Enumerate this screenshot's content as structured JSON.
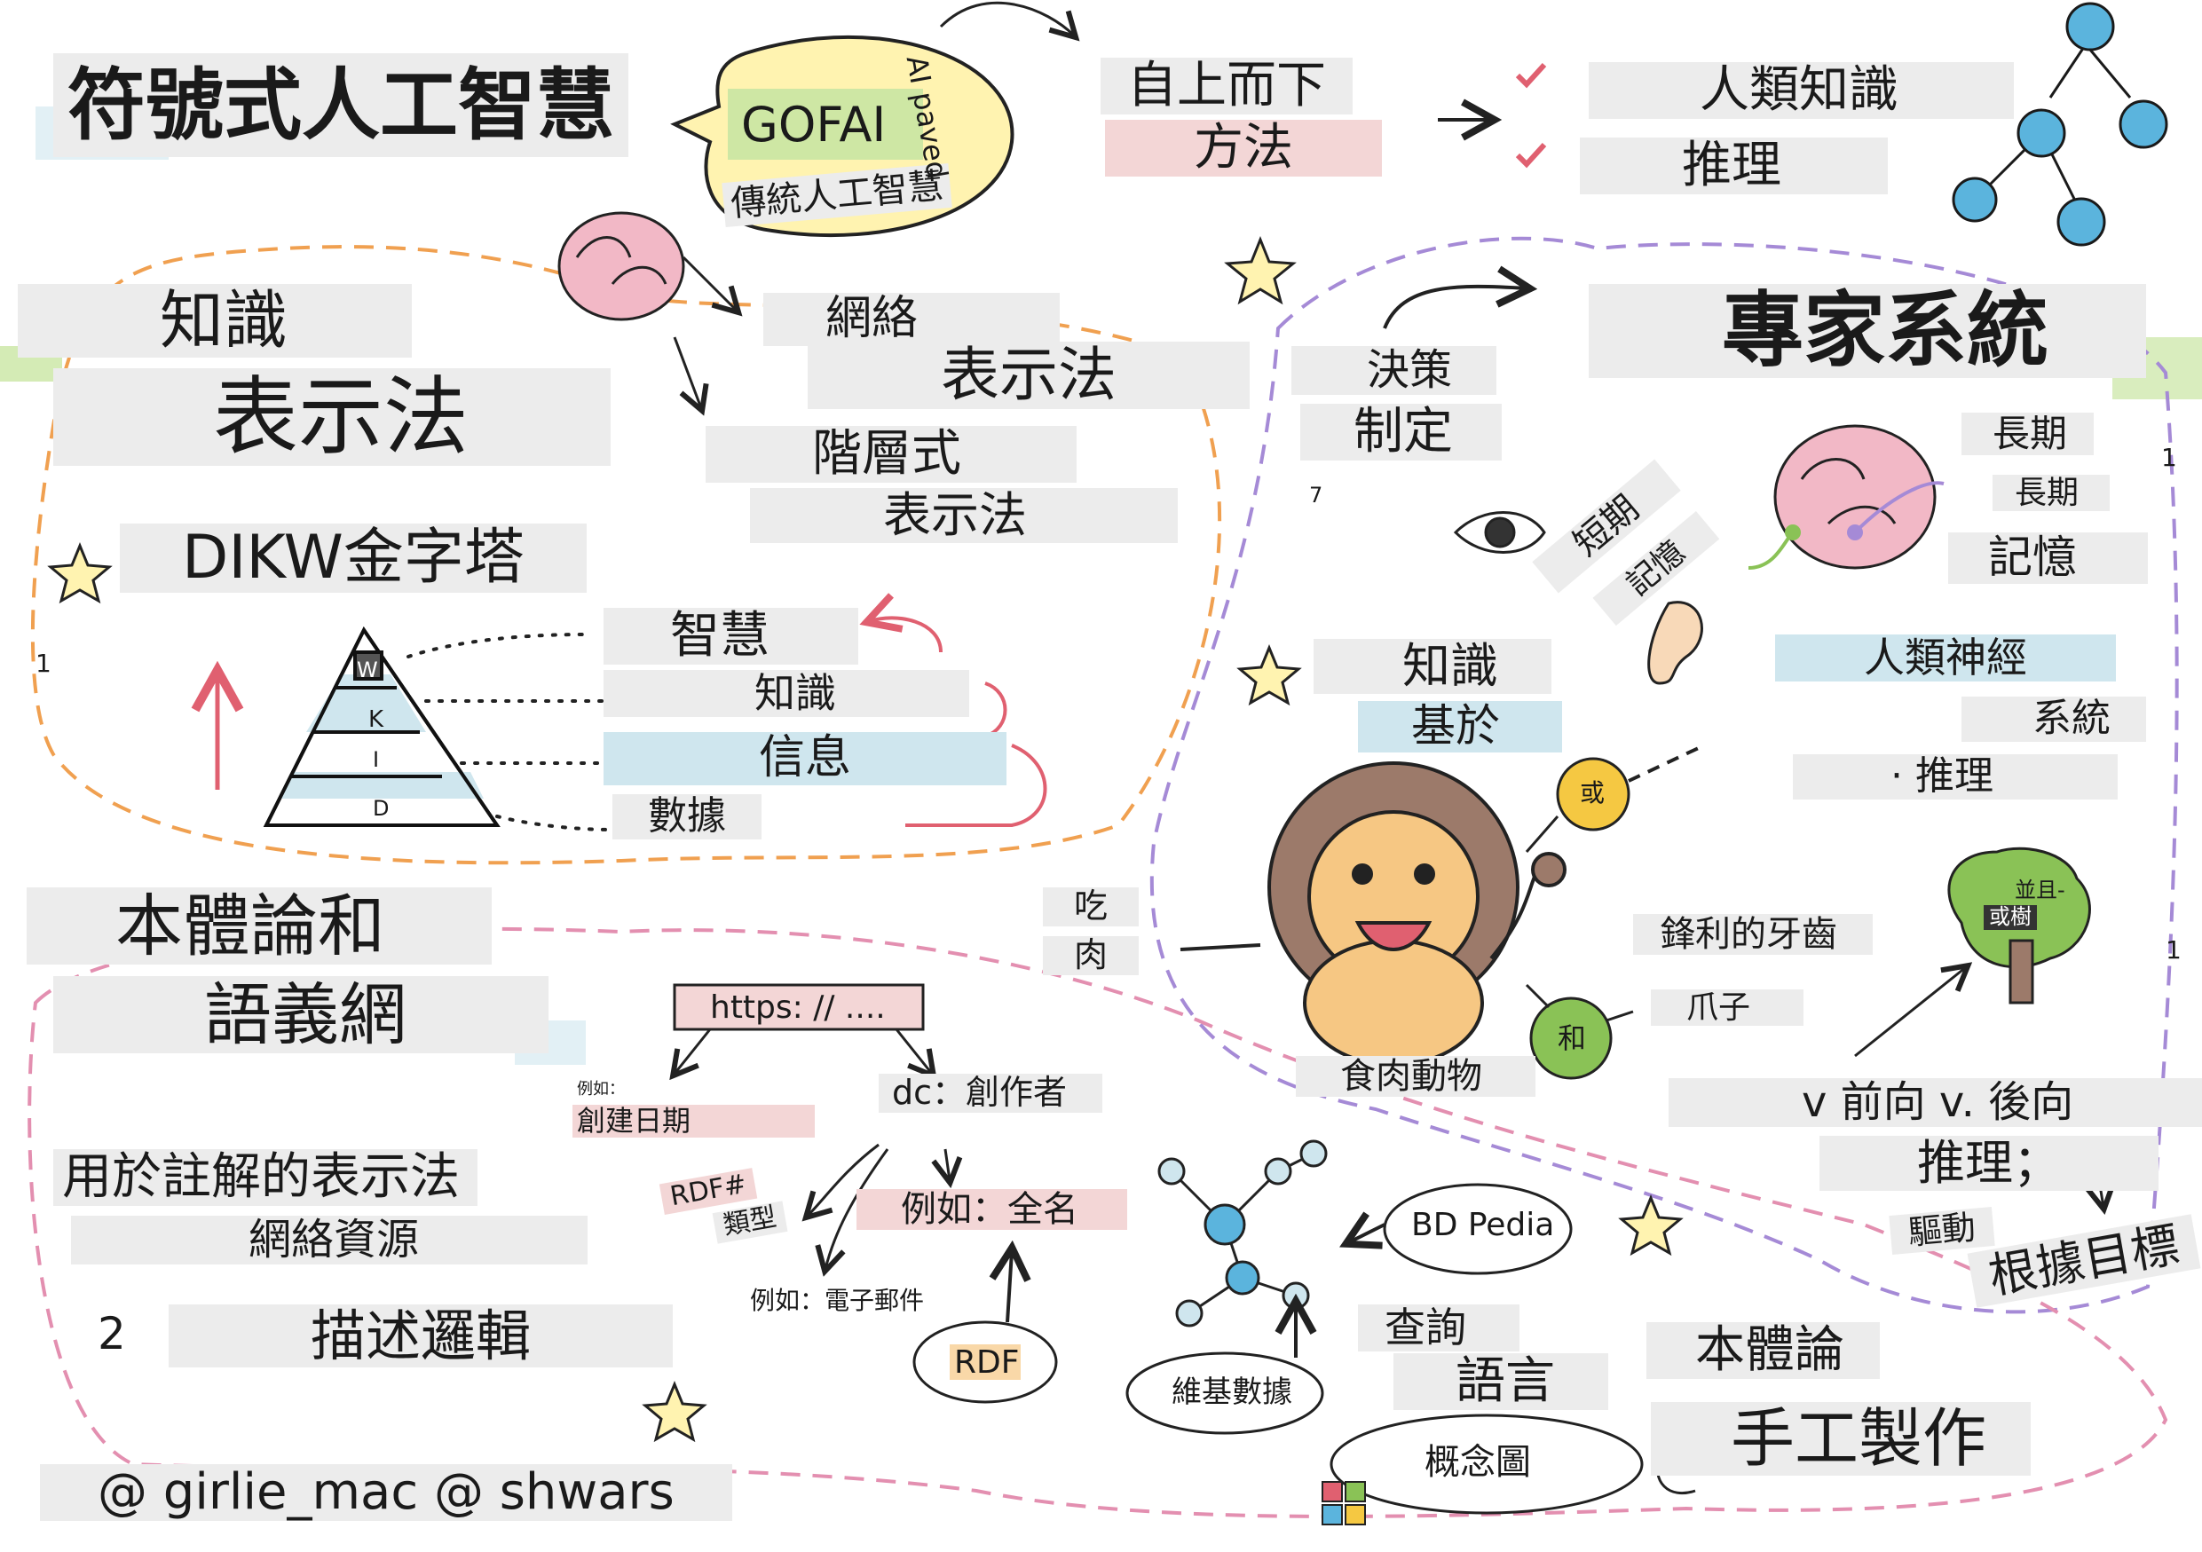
{
  "title": "符號式人工智慧",
  "gofai": {
    "acronym": "GOFAI",
    "label": "傳統人工智慧",
    "arc_text": "AI paved"
  },
  "top_down": {
    "line1": "自上而下",
    "line2": "方法",
    "items": [
      "人類知識",
      "推理"
    ]
  },
  "knowledge_rep": {
    "title_line1": "知識",
    "title_line2": "表示法",
    "network_line1": "網絡",
    "network_line2": "表示法",
    "hier_line1": "階層式",
    "hier_line2": "表示法"
  },
  "dikw": {
    "title": "DIKW金字塔",
    "levels": [
      {
        "letter": "W",
        "label": "智慧"
      },
      {
        "letter": "K",
        "label": "知識"
      },
      {
        "letter": "I",
        "label": "信息"
      },
      {
        "letter": "D",
        "label": "數據"
      }
    ]
  },
  "expert_systems": {
    "title": "專家系統",
    "decision_line1": "決策",
    "decision_line2": "制定",
    "short_term_line1": "短期",
    "short_term_line2": "記憶",
    "long_term_line1": "長期",
    "long_term_line2": "長期",
    "long_term_line3": "記憶",
    "kb_line1": "知識",
    "kb_line2": "基於",
    "neural_line1": "人類神經",
    "neural_line2": "系統",
    "neural_line3": "· 推理"
  },
  "lion": {
    "eat_line1": "吃",
    "eat_line2": "肉",
    "or": "或",
    "and": "和",
    "teeth": "鋒利的牙齒",
    "claws": "爪子",
    "carnivore": "食肉動物",
    "tree_label_line1": "並且-",
    "tree_label_line2": "或樹"
  },
  "inference": {
    "line1": "v 前向 v. 後向",
    "line2": "推理；",
    "driven": "驅動",
    "goal": "根據目標"
  },
  "ontology": {
    "title_line1": "本體論和",
    "title_line2": "語義網",
    "annot_line1": "用於註解的表示法",
    "annot_line2": "網絡資源",
    "num": "2",
    "desc_logic": "描述邏輯"
  },
  "rdf": {
    "url": "https: // ....",
    "eg_small": "例如：",
    "created": "創建日期",
    "creator": "dc：創作者",
    "type_line1": "RDF#",
    "type_line2": "類型",
    "fullname": "例如：全名",
    "email": "例如：電子郵件",
    "label": "RDF"
  },
  "kg": {
    "dbpedia": "BD Pedia",
    "wikidata": "維基數據",
    "query_line1": "查詢",
    "query_line2": "語言",
    "ontology": "本體論",
    "handmade": "手工製作",
    "concept_map": "概念圖"
  },
  "credits": "@ girlie_mac @ shwars",
  "side_numbers": [
    "1",
    "7",
    "1",
    "1"
  ],
  "colors": {
    "gray_tape": "#ececec",
    "pink_tape": "#f3d6d6",
    "blue_tape": "#cfe6ee",
    "orange_dash": "#f0a050",
    "purple_dash": "#a58ad6",
    "pink_dash": "#e38fb0",
    "yellow": "#f5c842",
    "green": "#8ac256",
    "brain_pink": "#f2b8c6",
    "node_blue": "#5bb4dd"
  },
  "icons": [
    "brain-icon",
    "eye-icon",
    "ear-icon",
    "lion-icon",
    "tree-icon",
    "star-icon",
    "network-graph-icon",
    "molecule-graph-icon",
    "windows-logo-icon",
    "pyramid-icon"
  ]
}
